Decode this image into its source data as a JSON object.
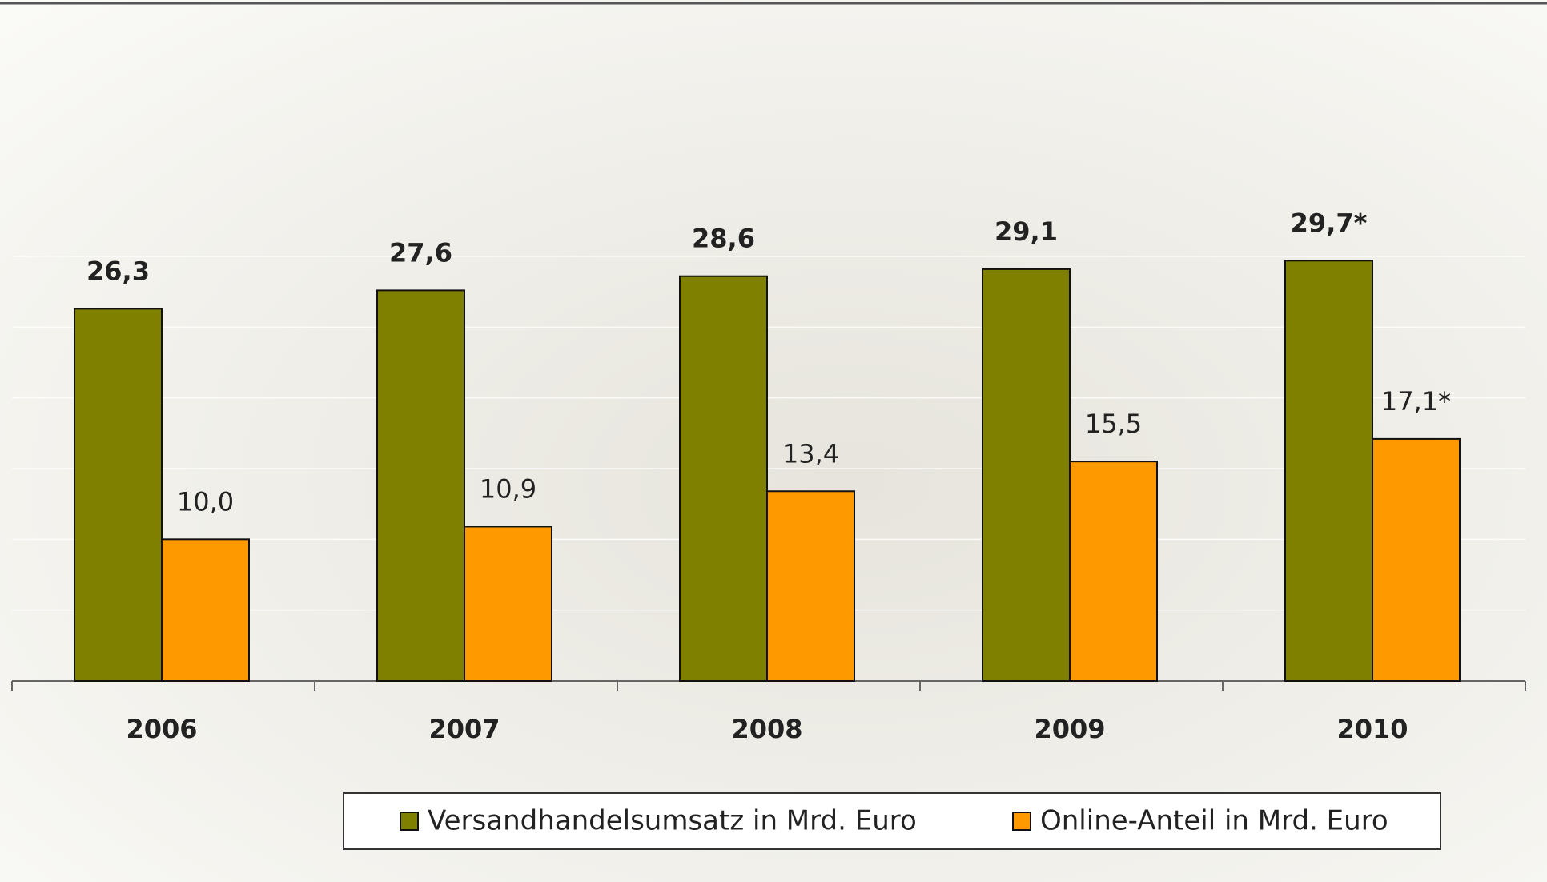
{
  "chart_data": {
    "type": "bar",
    "categories": [
      "2006",
      "2007",
      "2008",
      "2009",
      "2010"
    ],
    "series": [
      {
        "name": "Versandhandelsumsatz in Mrd. Euro",
        "color": "#808000",
        "values": [
          26.3,
          27.6,
          28.6,
          29.1,
          29.7
        ],
        "value_labels": [
          "26,3",
          "27,6",
          "28,6",
          "29,1",
          "29,7*"
        ]
      },
      {
        "name": "Online-Anteil in Mrd. Euro",
        "color": "#ff9900",
        "values": [
          10.0,
          10.9,
          13.4,
          15.5,
          17.1
        ],
        "value_labels": [
          "10,0",
          "10,9",
          "13,4",
          "15,5",
          "17,1*"
        ]
      }
    ],
    "ylim": [
      0,
      45
    ],
    "yticks": [
      0,
      5,
      10,
      15,
      20,
      25,
      30
    ],
    "grid": true,
    "legend": "bottom"
  }
}
